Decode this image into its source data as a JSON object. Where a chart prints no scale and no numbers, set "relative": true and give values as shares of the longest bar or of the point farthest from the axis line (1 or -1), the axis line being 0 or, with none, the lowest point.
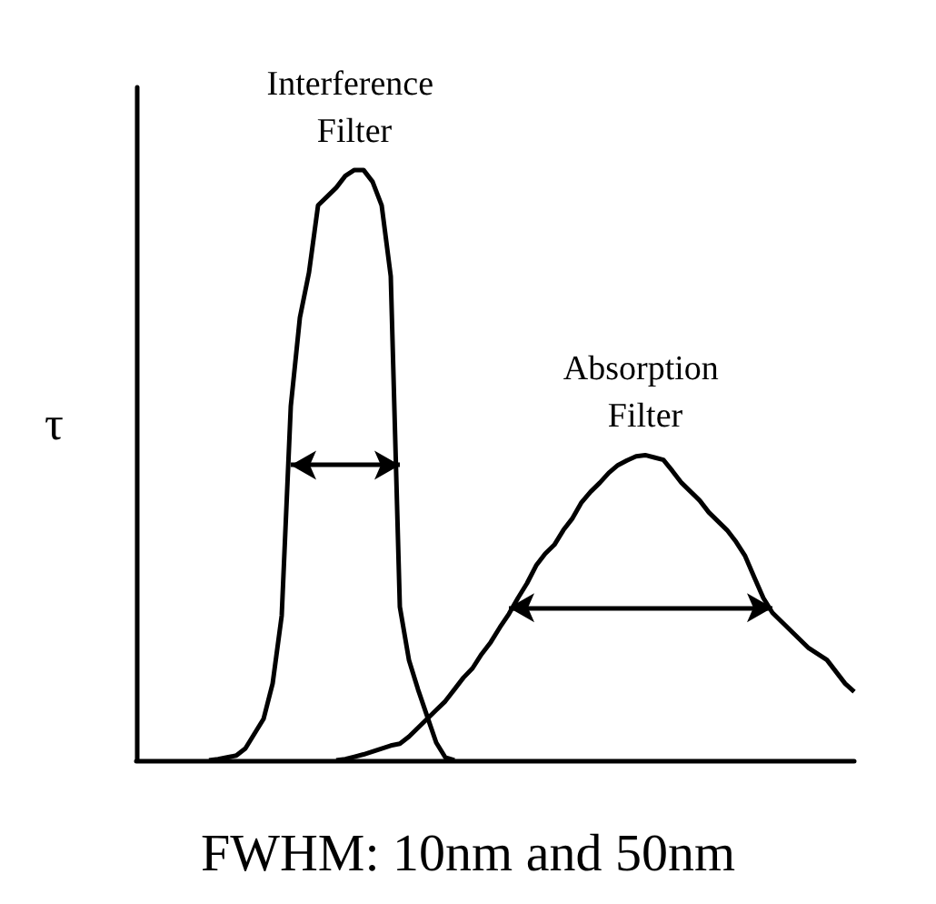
{
  "chart_data": {
    "type": "line",
    "title": "FWHM: 10nm and 50nm",
    "ylabel": "τ",
    "relative": true,
    "grid": false,
    "legend": false,
    "marker": "none",
    "line_style": "solid",
    "categories": [
      null,
      null,
      null,
      null,
      null,
      null,
      null,
      null,
      null,
      null,
      null,
      null,
      null,
      null,
      null,
      null,
      null,
      null,
      null,
      null,
      null,
      null,
      null,
      null,
      null,
      null,
      null,
      null,
      null,
      null,
      null,
      null,
      null,
      null,
      null,
      null,
      null,
      null,
      null,
      null,
      null,
      null,
      null,
      null,
      null,
      null,
      null,
      null,
      null,
      null,
      null,
      null,
      null,
      null,
      null,
      null,
      null,
      null,
      null,
      null,
      null,
      null,
      null,
      null,
      null,
      null,
      null,
      null,
      null,
      null,
      null,
      null,
      null,
      null,
      null,
      null,
      null,
      null,
      null,
      null
    ],
    "series": [
      {
        "name": "Interference Filter",
        "color": "#000000",
        "values": [
          null,
          null,
          null,
          null,
          null,
          null,
          null,
          null,
          0,
          0.002,
          0.005,
          0.008,
          0.02,
          0.045,
          0.07,
          0.13,
          0.245,
          0.6,
          0.75,
          0.826,
          0.94,
          0.955,
          0.97,
          0.99,
          1,
          1,
          0.98,
          0.94,
          0.82,
          0.26,
          0.17,
          0.12,
          0.075,
          0.03,
          0.005,
          0,
          null,
          null,
          null,
          null,
          null,
          null,
          null,
          null,
          null,
          null,
          null,
          null,
          null,
          null,
          null,
          null,
          null,
          null,
          null,
          null,
          null,
          null,
          null,
          null,
          null,
          null,
          null,
          null,
          null,
          null,
          null,
          null,
          null,
          null,
          null,
          null,
          null,
          null,
          null,
          null,
          null,
          null,
          null,
          null
        ]
      },
      {
        "name": "Absorption Filter",
        "color": "#000000",
        "values": [
          null,
          null,
          null,
          null,
          null,
          null,
          null,
          null,
          null,
          null,
          null,
          null,
          null,
          null,
          null,
          null,
          null,
          null,
          null,
          null,
          null,
          null,
          0,
          0.002,
          0.006,
          0.01,
          0.015,
          0.02,
          0.025,
          0.028,
          0.04,
          0.055,
          0.07,
          0.085,
          0.1,
          0.12,
          0.14,
          0.156,
          0.18,
          0.2,
          0.225,
          0.248,
          0.275,
          0.3,
          0.33,
          0.35,
          0.365,
          0.39,
          0.41,
          0.437,
          0.455,
          0.47,
          0.487,
          0.5,
          0.508,
          0.515,
          0.517,
          0.513,
          0.509,
          0.49,
          0.47,
          0.455,
          0.44,
          0.42,
          0.405,
          0.39,
          0.37,
          0.346,
          0.31,
          0.275,
          0.25,
          0.235,
          0.22,
          0.205,
          0.19,
          0.18,
          0.17,
          0.15,
          0.13,
          0.116
        ]
      }
    ]
  }
}
